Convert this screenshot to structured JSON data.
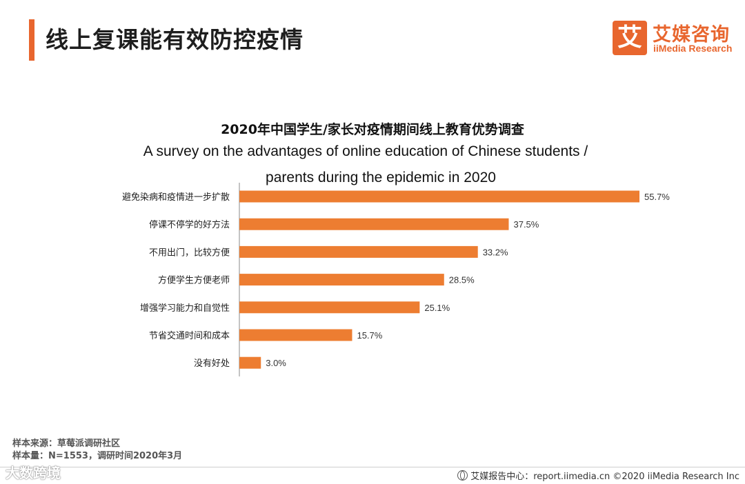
{
  "header": {
    "title": "线上复课能有效防控疫情",
    "logo": {
      "mark": "艾",
      "cn": "艾媒咨询",
      "en": "iiMedia Research"
    }
  },
  "chart_titles": {
    "cn": "2020年中国学生/家长对疫情期间线上教育优势调查",
    "en_line1": "A survey on the advantages  of online education  of Chinese students  /",
    "en_line2": "parents during the epidemic  in 2020"
  },
  "chart_data": {
    "type": "bar",
    "orientation": "horizontal",
    "categories": [
      "避免染病和疫情进一步扩散",
      "停课不停学的好方法",
      "不用出门，比较方便",
      "方便学生方便老师",
      "增强学习能力和自觉性",
      "节省交通时间和成本",
      "没有好处"
    ],
    "values": [
      55.7,
      37.5,
      33.2,
      28.5,
      25.1,
      15.7,
      3.0
    ],
    "value_labels": [
      "55.7%",
      "37.5%",
      "33.2%",
      "28.5%",
      "25.1%",
      "15.7%",
      "3.0%"
    ],
    "xlim": [
      0,
      55.7
    ],
    "bar_color": "#ed7d31",
    "grid": false,
    "legend": false
  },
  "footer": {
    "source": "样本来源：草莓派调研社区",
    "sample": "样本量：N=1553，调研时间2020年3月",
    "watermark": "大数跨境",
    "right": "艾媒报告中心：report.iimedia.cn  ©2020  iiMedia Research  Inc"
  }
}
